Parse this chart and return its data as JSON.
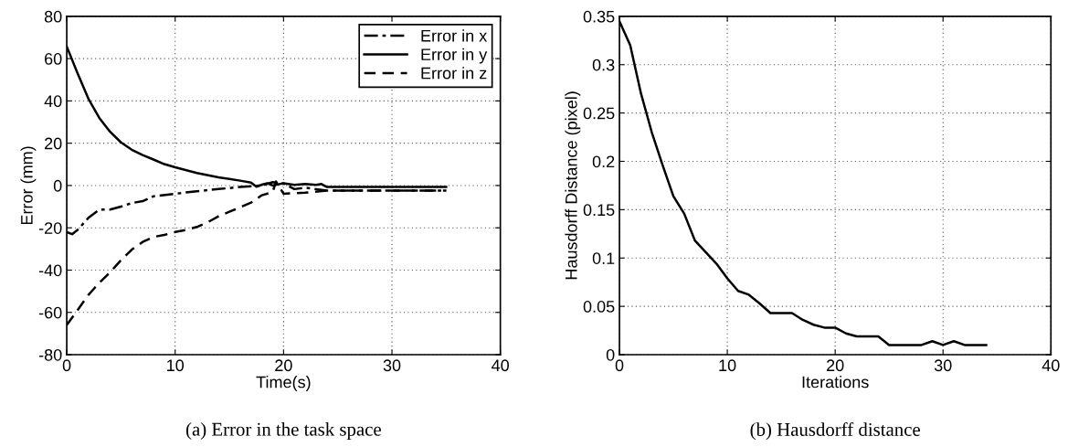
{
  "chart_data": [
    {
      "type": "line",
      "xlabel": "Time(s)",
      "ylabel": "Error (mm)",
      "annotations": [
        "(a) Error in the task space"
      ],
      "xlim": [
        0,
        40
      ],
      "xticks": [
        0,
        10,
        20,
        30,
        40
      ],
      "ylim": [
        -80,
        80
      ],
      "yticks": [
        -80,
        -60,
        -40,
        -20,
        0,
        20,
        40,
        60,
        80
      ],
      "grid": true,
      "legend": "top right",
      "marker": "none",
      "series": [
        {
          "name": "Error in x",
          "color": "#000000",
          "line_style": "dashdot",
          "x": [
            0,
            0.5,
            1,
            2,
            3,
            4,
            5,
            6,
            7,
            8,
            10,
            12,
            14,
            16,
            18,
            19,
            20,
            21,
            22,
            23,
            24,
            35
          ],
          "values": [
            -22,
            -23,
            -21,
            -15.3,
            -11.4,
            -11.4,
            -10,
            -8.3,
            -7.4,
            -5.1,
            -3.9,
            -2.7,
            -1.7,
            -0.7,
            0,
            1.6,
            0.9,
            -1.7,
            -1,
            -1.7,
            -2.4,
            -2.4
          ]
        },
        {
          "name": "Error in y",
          "color": "#000000",
          "line_style": "solid",
          "x": [
            0,
            1,
            2,
            3,
            4,
            5,
            6,
            7,
            8,
            9,
            10,
            12,
            14,
            16,
            17,
            17.5,
            18,
            18.5,
            19,
            20,
            21,
            22,
            23,
            23.5,
            24,
            35
          ],
          "values": [
            65.7,
            53,
            41,
            32,
            25.4,
            20.4,
            16.9,
            14.4,
            12.3,
            10.1,
            8.6,
            5.9,
            3.9,
            2.3,
            1.4,
            -0.6,
            0.4,
            1.1,
            0,
            1.1,
            0.3,
            0.7,
            0.3,
            0.7,
            -0.7,
            -0.7
          ]
        },
        {
          "name": "Error in z",
          "color": "#000000",
          "line_style": "dashed",
          "x": [
            0,
            1,
            2,
            3,
            4,
            5,
            6,
            7,
            8,
            9,
            10,
            11,
            12,
            13,
            14,
            15,
            16,
            17,
            18,
            19,
            19.3,
            20,
            22,
            24,
            35
          ],
          "values": [
            -66,
            -58.9,
            -51.7,
            -46,
            -41,
            -35.3,
            -30.3,
            -26.7,
            -24.3,
            -23.4,
            -22,
            -21,
            -19.6,
            -17.4,
            -14.6,
            -12.4,
            -10.3,
            -8.1,
            -4.6,
            -3.1,
            1.9,
            -3.9,
            -3.4,
            -2.4,
            -2.4
          ]
        }
      ]
    },
    {
      "type": "line",
      "xlabel": "Iterations",
      "ylabel": "Hausdorff Distance (pixel)",
      "annotations": [
        "(b) Hausdorff distance"
      ],
      "xlim": [
        0,
        40
      ],
      "xticks": [
        0,
        10,
        20,
        30,
        40
      ],
      "ylim": [
        0,
        0.35
      ],
      "yticks": [
        0,
        0.05,
        0.1,
        0.15,
        0.2,
        0.25,
        0.3,
        0.35
      ],
      "grid": true,
      "legend": false,
      "marker": "none",
      "series": [
        {
          "color": "#000000",
          "line_style": "solid",
          "x": [
            0,
            1,
            2,
            3,
            4,
            5,
            6,
            7,
            8,
            9,
            10,
            11,
            12,
            13,
            14,
            15,
            16,
            17,
            18,
            19,
            20,
            21,
            22,
            23,
            24,
            25,
            26,
            27,
            28,
            29,
            30,
            31,
            32,
            33,
            34
          ],
          "values": [
            0.345,
            0.32,
            0.27,
            0.23,
            0.196,
            0.164,
            0.146,
            0.118,
            0.106,
            0.094,
            0.079,
            0.066,
            0.062,
            0.053,
            0.043,
            0.043,
            0.043,
            0.036,
            0.031,
            0.028,
            0.028,
            0.022,
            0.019,
            0.019,
            0.019,
            0.01,
            0.01,
            0.01,
            0.01,
            0.014,
            0.01,
            0.014,
            0.01,
            0.01,
            0.01
          ]
        }
      ]
    }
  ]
}
